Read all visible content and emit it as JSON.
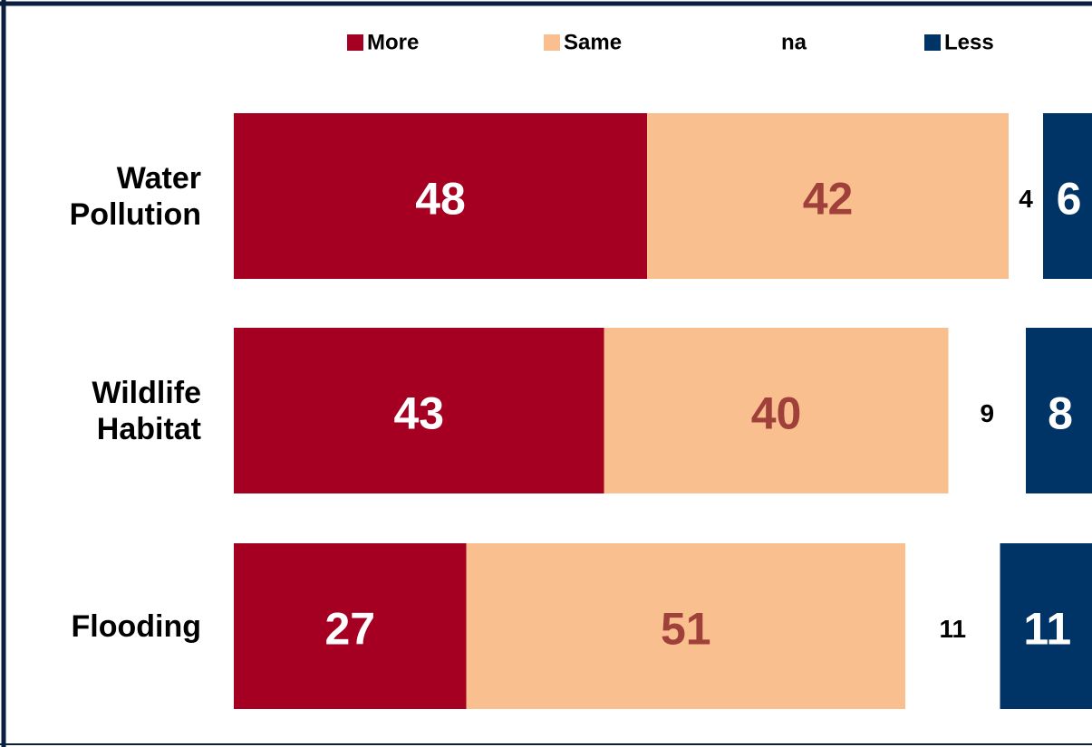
{
  "chart_data": {
    "type": "stacked_bar_horizontal",
    "categories": [
      "Water Pollution",
      "Wildlife Habitat",
      "Flooding"
    ],
    "series": [
      {
        "name": "More",
        "color": "#a50021",
        "label_color": "#ffffff",
        "values": [
          48,
          43,
          27
        ]
      },
      {
        "name": "Same",
        "color": "#f9bf8f",
        "label_color": "#a0403a",
        "values": [
          42,
          40,
          51
        ]
      },
      {
        "name": "na",
        "color": null,
        "label_color": "#000000",
        "values": [
          4,
          9,
          11
        ]
      },
      {
        "name": "Less",
        "color": "#003366",
        "label_color": "#ffffff",
        "values": [
          6,
          8,
          11
        ]
      }
    ],
    "xlim": [
      0,
      100
    ],
    "legend": "top"
  }
}
